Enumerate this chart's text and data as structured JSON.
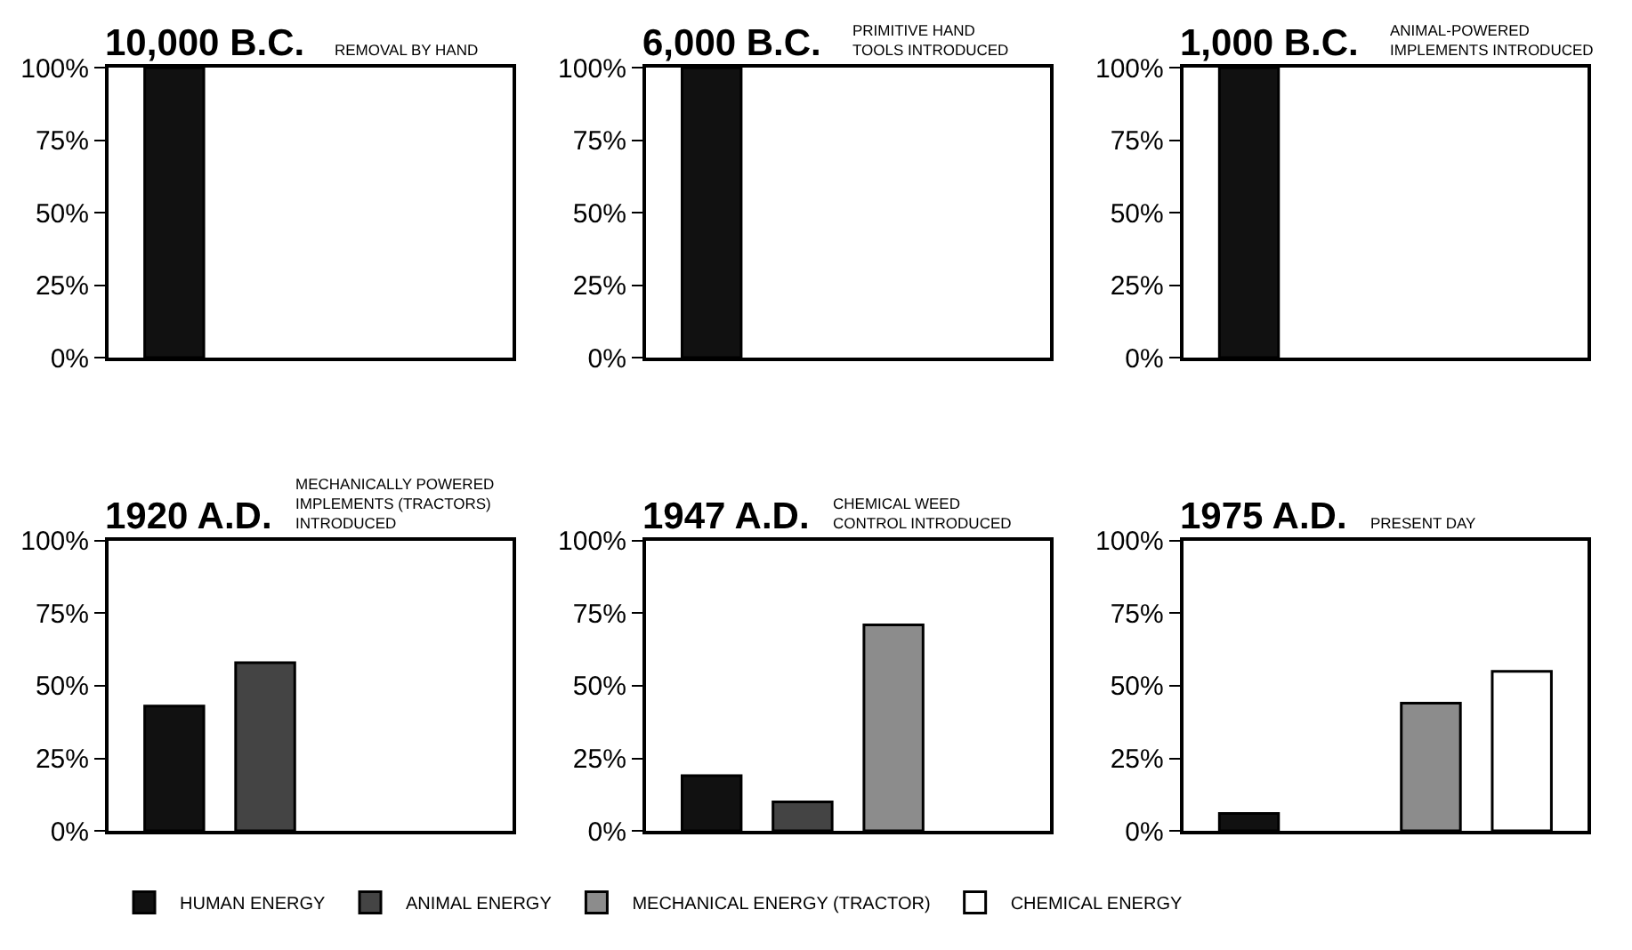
{
  "chart_data": [
    {
      "type": "bar",
      "title": "10,000 B.C.",
      "subtitle": "REMOVAL BY HAND",
      "categories": [
        null
      ],
      "ylim": [
        0,
        100
      ],
      "yticks": [
        {
          "value": 0,
          "label": "0%"
        },
        {
          "value": 25,
          "label": "25%"
        },
        {
          "value": 50,
          "label": "50%"
        },
        {
          "value": 75,
          "label": "75%"
        },
        {
          "value": 100,
          "label": "100%"
        }
      ],
      "tick_labels": "y",
      "series": [
        {
          "color": "#111111",
          "values": [
            100
          ]
        },
        {
          "color": "#444444",
          "values": [
            null
          ]
        },
        {
          "color": "#8c8c8c",
          "values": [
            null
          ]
        },
        {
          "color": "#ffffff",
          "values": [
            null
          ]
        }
      ]
    },
    {
      "type": "bar",
      "title": "6,000 B.C.",
      "subtitle": "PRIMITIVE HAND\nTOOLS INTRODUCED",
      "categories": [
        null
      ],
      "ylim": [
        0,
        100
      ],
      "yticks": [
        {
          "value": 0,
          "label": "0%"
        },
        {
          "value": 25,
          "label": "25%"
        },
        {
          "value": 50,
          "label": "50%"
        },
        {
          "value": 75,
          "label": "75%"
        },
        {
          "value": 100,
          "label": "100%"
        }
      ],
      "tick_labels": "y",
      "series": [
        {
          "color": "#111111",
          "values": [
            100
          ]
        },
        {
          "color": "#444444",
          "values": [
            null
          ]
        },
        {
          "color": "#8c8c8c",
          "values": [
            null
          ]
        },
        {
          "color": "#ffffff",
          "values": [
            null
          ]
        }
      ]
    },
    {
      "type": "bar",
      "title": "1,000 B.C.",
      "subtitle": "ANIMAL-POWERED\nIMPLEMENTS INTRODUCED",
      "categories": [
        null
      ],
      "ylim": [
        0,
        100
      ],
      "yticks": [
        {
          "value": 0,
          "label": "0%"
        },
        {
          "value": 25,
          "label": "25%"
        },
        {
          "value": 50,
          "label": "50%"
        },
        {
          "value": 75,
          "label": "75%"
        },
        {
          "value": 100,
          "label": "100%"
        }
      ],
      "tick_labels": "y",
      "series": [
        {
          "color": "#111111",
          "values": [
            100
          ]
        },
        {
          "color": "#444444",
          "values": [
            null
          ]
        },
        {
          "color": "#8c8c8c",
          "values": [
            null
          ]
        },
        {
          "color": "#ffffff",
          "values": [
            null
          ]
        }
      ]
    },
    {
      "type": "bar",
      "title": "1920 A.D.",
      "subtitle": "MECHANICALLY POWERED\nIMPLEMENTS (TRACTORS)\nINTRODUCED",
      "categories": [
        null
      ],
      "ylim": [
        0,
        100
      ],
      "yticks": [
        {
          "value": 0,
          "label": "0%"
        },
        {
          "value": 25,
          "label": "25%"
        },
        {
          "value": 50,
          "label": "50%"
        },
        {
          "value": 75,
          "label": "75%"
        },
        {
          "value": 100,
          "label": "100%"
        }
      ],
      "tick_labels": "y",
      "series": [
        {
          "color": "#111111",
          "values": [
            43
          ]
        },
        {
          "color": "#444444",
          "values": [
            58
          ]
        },
        {
          "color": "#8c8c8c",
          "values": [
            null
          ]
        },
        {
          "color": "#ffffff",
          "values": [
            null
          ]
        }
      ]
    },
    {
      "type": "bar",
      "title": "1947 A.D.",
      "subtitle": "CHEMICAL WEED\nCONTROL INTRODUCED",
      "categories": [
        null
      ],
      "ylim": [
        0,
        100
      ],
      "yticks": [
        {
          "value": 0,
          "label": "0%"
        },
        {
          "value": 25,
          "label": "25%"
        },
        {
          "value": 50,
          "label": "50%"
        },
        {
          "value": 75,
          "label": "75%"
        },
        {
          "value": 100,
          "label": "100%"
        }
      ],
      "tick_labels": "y",
      "series": [
        {
          "color": "#111111",
          "values": [
            19
          ]
        },
        {
          "color": "#444444",
          "values": [
            10
          ]
        },
        {
          "color": "#8c8c8c",
          "values": [
            71
          ]
        },
        {
          "color": "#ffffff",
          "values": [
            null
          ]
        }
      ]
    },
    {
      "type": "bar",
      "title": "1975 A.D.",
      "subtitle": "PRESENT DAY",
      "categories": [
        null
      ],
      "ylim": [
        0,
        100
      ],
      "yticks": [
        {
          "value": 0,
          "label": "0%"
        },
        {
          "value": 25,
          "label": "25%"
        },
        {
          "value": 50,
          "label": "50%"
        },
        {
          "value": 75,
          "label": "75%"
        },
        {
          "value": 100,
          "label": "100%"
        }
      ],
      "legend": "bottom",
      "tick_labels": "y",
      "series": [
        {
          "name": "HUMAN ENERGY",
          "color": "#111111",
          "values": [
            6
          ]
        },
        {
          "name": "ANIMAL ENERGY",
          "color": "#444444",
          "values": [
            null
          ]
        },
        {
          "name": "MECHANICAL ENERGY (TRACTOR)",
          "color": "#8c8c8c",
          "values": [
            44
          ]
        },
        {
          "name": "CHEMICAL ENERGY",
          "color": "#ffffff",
          "values": [
            55
          ]
        }
      ]
    }
  ]
}
